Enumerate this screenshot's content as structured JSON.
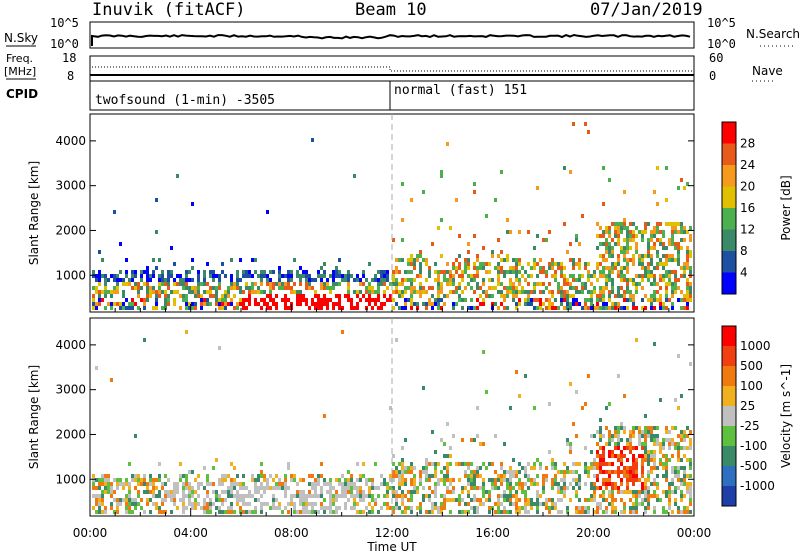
{
  "header": {
    "station": "Inuvik (fitACF)",
    "beam": "Beam 10",
    "date": "07/Jan/2019"
  },
  "noise_panel": {
    "left_label": "N.Sky",
    "right_label": "N.Search",
    "left_ticks": [
      "10^5",
      "10^0"
    ],
    "right_ticks": [
      "10^5",
      "10^0"
    ]
  },
  "freq_panel": {
    "label_line1": "Freq.",
    "label_line2": "[MHz]",
    "right_label": "Nave",
    "left_ticks": [
      "18",
      "8"
    ],
    "right_ticks": [
      "60",
      "0"
    ]
  },
  "cpid_panel": {
    "label": "CPID",
    "modes": [
      {
        "name": "twofsound (1-min) -3505",
        "start_hour": 0
      },
      {
        "name": "normal (fast) 151",
        "start_hour": 12
      }
    ]
  },
  "chart_data": [
    {
      "type": "heatmap",
      "ylabel": "Slant Range [km]",
      "xlabel": "Time UT",
      "x_ticks": [
        "00:00",
        "04:00",
        "08:00",
        "12:00",
        "16:00",
        "20:00",
        "00:00"
      ],
      "y_ticks": [
        "1000",
        "2000",
        "3000",
        "4000"
      ],
      "ylim": [
        180,
        4600
      ],
      "xlim": [
        0,
        24
      ],
      "colorbar_label": "Power [dB]",
      "colorbar_ticks": [
        "4",
        "8",
        "12",
        "16",
        "20",
        "24",
        "28"
      ],
      "colorbar_colors": [
        "#0000ff",
        "#1e4fa0",
        "#3a8a6a",
        "#4caf50",
        "#e0c000",
        "#f59a1c",
        "#e85a1a",
        "#ff0000"
      ]
    },
    {
      "type": "heatmap",
      "ylabel": "Slant Range [km]",
      "xlabel": "Time UT",
      "x_ticks": [
        "00:00",
        "04:00",
        "08:00",
        "12:00",
        "16:00",
        "20:00",
        "00:00"
      ],
      "y_ticks": [
        "1000",
        "2000",
        "3000",
        "4000"
      ],
      "ylim": [
        180,
        4600
      ],
      "xlim": [
        0,
        24
      ],
      "colorbar_label": "Velocity [m s^-1]",
      "colorbar_ticks": [
        "1000",
        "500",
        "100",
        "25",
        "-25",
        "-100",
        "-500",
        "-1000"
      ],
      "colorbar_colors": [
        "#1f3fa8",
        "#2f6fbf",
        "#3a8a6a",
        "#5fbf3f",
        "#c0c0c0",
        "#f0b020",
        "#f07a10",
        "#f04010",
        "#ff0000"
      ]
    }
  ]
}
